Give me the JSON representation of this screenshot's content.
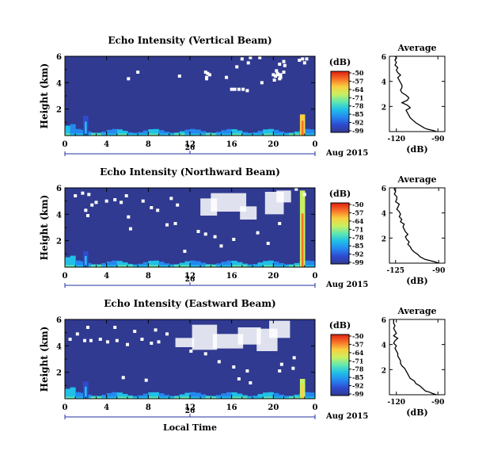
{
  "figure": {
    "date_label": "Aug 2015",
    "x_axis_title": "Local Time",
    "heatmap_ylabel": "Height (km)",
    "avg_title": "Average",
    "avg_xlabel": "(dB)",
    "colorbar_title": "(dB)"
  },
  "colors": {
    "background_fill": "#363a78",
    "missing_fill": "#ffffff",
    "profile_line": "#000000",
    "colormap": [
      "#303a90",
      "#2f4ad0",
      "#2488f0",
      "#20c0e8",
      "#60e8b0",
      "#c8f060",
      "#f8d040",
      "#f87028",
      "#e02010"
    ]
  },
  "chart_data": [
    {
      "type": "heatmap",
      "title": "Echo Intensity (Vertical Beam)",
      "xlabel": "",
      "ylabel": "Height (km)",
      "x_ticks": [
        "0",
        "4",
        "8",
        "12",
        "16",
        "20",
        "0"
      ],
      "x_range_hours": [
        0,
        24
      ],
      "date_tick": "26",
      "y_ticks": [
        "2",
        "4",
        "6"
      ],
      "y_range_km": [
        0,
        6
      ],
      "colorbar": {
        "label": "(dB)",
        "ticks": [
          "-50",
          "-57",
          "-64",
          "-71",
          "-78",
          "-85",
          "-92",
          "-99"
        ],
        "range": [
          -99,
          -50
        ]
      },
      "background_db": -96,
      "surface_layer_db": -85,
      "intense_columns": [
        {
          "hour": 2.0,
          "db": -80,
          "top_km": 1.5
        },
        {
          "hour": 22.8,
          "db": -55,
          "top_km": 1.6
        }
      ],
      "missing_cells_hour_km": [
        [
          6.1,
          4.3
        ],
        [
          11.0,
          4.5
        ],
        [
          13.6,
          4.4
        ],
        [
          13.6,
          4.3
        ],
        [
          13.9,
          4.6
        ],
        [
          13.7,
          4.7
        ],
        [
          13.5,
          4.8
        ],
        [
          7.0,
          4.8
        ],
        [
          15.5,
          4.4
        ],
        [
          16.3,
          3.5
        ],
        [
          17.1,
          3.5
        ],
        [
          17.5,
          3.4
        ],
        [
          16.7,
          3.5
        ],
        [
          16.0,
          3.5
        ],
        [
          18.9,
          4.0
        ],
        [
          20.1,
          4.2
        ],
        [
          20.7,
          4.6
        ],
        [
          21.1,
          5.3
        ],
        [
          20.6,
          5.4
        ],
        [
          20.3,
          4.9
        ],
        [
          20.6,
          4.3
        ],
        [
          21.0,
          4.8
        ],
        [
          20.5,
          4.6
        ],
        [
          20.2,
          4.5
        ],
        [
          20.0,
          4.6
        ],
        [
          20.7,
          4.4
        ],
        [
          20.4,
          4.7
        ],
        [
          21.0,
          5.6
        ],
        [
          22.8,
          5.8
        ],
        [
          23.2,
          5.8
        ],
        [
          22.5,
          5.7
        ],
        [
          23.0,
          5.5
        ],
        [
          17.0,
          5.8
        ],
        [
          17.8,
          5.9
        ],
        [
          18.7,
          5.9
        ],
        [
          17.6,
          5.5
        ],
        [
          16.5,
          5.2
        ]
      ],
      "average_profile": {
        "title": "Average",
        "xlabel": "(dB)",
        "x_ticks": [
          "-120",
          "-90"
        ],
        "x_range": [
          -125,
          -85
        ],
        "y_ticks": [
          "2",
          "4",
          "6"
        ],
        "y_range_km": [
          0,
          6
        ],
        "height_km": [
          0.0,
          0.1,
          0.2,
          0.3,
          0.5,
          0.7,
          0.9,
          1.1,
          1.3,
          1.5,
          1.7,
          1.9,
          2.1,
          2.3,
          2.5,
          2.7,
          2.9,
          3.1,
          3.3,
          3.5,
          3.7,
          3.9,
          4.1,
          4.3,
          4.5,
          4.7,
          4.9,
          5.1,
          5.3,
          5.5,
          5.7,
          5.9,
          6.0
        ],
        "db": [
          -91,
          -94,
          -98,
          -100,
          -103,
          -106,
          -108,
          -110,
          -111,
          -112,
          -113,
          -110,
          -112,
          -116,
          -112,
          -111,
          -113,
          -116,
          -117,
          -116,
          -116,
          -117,
          -118,
          -119,
          -117,
          -119,
          -120,
          -119,
          -121,
          -120,
          -121,
          -120,
          -121
        ]
      }
    },
    {
      "type": "heatmap",
      "title": "Echo Intensity (Northward Beam)",
      "xlabel": "",
      "ylabel": "Height (km)",
      "x_ticks": [
        "0",
        "4",
        "8",
        "12",
        "16",
        "20",
        "0"
      ],
      "x_range_hours": [
        0,
        24
      ],
      "date_tick": "26",
      "y_ticks": [
        "2",
        "4",
        "6"
      ],
      "y_range_km": [
        0,
        6
      ],
      "colorbar": {
        "label": "(dB)",
        "ticks": [
          "-50",
          "-57",
          "-64",
          "-71",
          "-78",
          "-85",
          "-92",
          "-99"
        ],
        "range": [
          -99,
          -50
        ]
      },
      "background_db": -96,
      "surface_layer_db": -84,
      "intense_columns": [
        {
          "hour": 2.0,
          "db": -82,
          "top_km": 1.2
        },
        {
          "hour": 22.8,
          "db": -58,
          "top_km": 5.8
        }
      ],
      "missing_cells_hour_km": [
        [
          1.0,
          5.4
        ],
        [
          1.7,
          5.6
        ],
        [
          2.3,
          5.5
        ],
        [
          2.6,
          4.7
        ],
        [
          2.0,
          4.3
        ],
        [
          2.2,
          3.9
        ],
        [
          3.0,
          4.9
        ],
        [
          4.0,
          5.0
        ],
        [
          4.8,
          5.1
        ],
        [
          5.4,
          4.9
        ],
        [
          5.9,
          5.4
        ],
        [
          6.1,
          3.8
        ],
        [
          7.5,
          5.0
        ],
        [
          8.3,
          4.5
        ],
        [
          8.9,
          4.3
        ],
        [
          10.2,
          5.2
        ],
        [
          10.8,
          4.7
        ],
        [
          9.8,
          3.2
        ],
        [
          10.6,
          3.3
        ],
        [
          6.3,
          2.9
        ],
        [
          12.8,
          2.7
        ],
        [
          13.5,
          2.5
        ],
        [
          14.4,
          2.3
        ],
        [
          16.2,
          2.1
        ],
        [
          18.5,
          2.6
        ],
        [
          19.5,
          1.8
        ],
        [
          20.6,
          3.3
        ],
        [
          22.2,
          5.9
        ],
        [
          23.0,
          5.5
        ],
        [
          11.5,
          1.2
        ],
        [
          15.0,
          1.6
        ]
      ],
      "missing_blocks_hour_km": [
        [
          13.0,
          14.6,
          3.9,
          5.2
        ],
        [
          14.0,
          17.4,
          4.2,
          5.6
        ],
        [
          16.8,
          18.4,
          3.6,
          4.6
        ],
        [
          19.2,
          21.0,
          4.0,
          5.7
        ],
        [
          20.3,
          21.7,
          4.9,
          5.8
        ]
      ],
      "average_profile": {
        "title": "Average",
        "xlabel": "(dB)",
        "x_ticks": [
          "-125",
          "-90"
        ],
        "x_range": [
          -130,
          -85
        ],
        "y_ticks": [
          "2",
          "4",
          "6"
        ],
        "y_range_km": [
          0,
          6
        ],
        "height_km": [
          0.0,
          0.1,
          0.2,
          0.3,
          0.5,
          0.7,
          0.9,
          1.1,
          1.3,
          1.5,
          1.7,
          1.9,
          2.1,
          2.3,
          2.5,
          2.7,
          2.9,
          3.1,
          3.3,
          3.5,
          3.7,
          3.9,
          4.1,
          4.3,
          4.5,
          4.7,
          4.9,
          5.1,
          5.3,
          5.5,
          5.7,
          5.9,
          6.0
        ],
        "db": [
          -90,
          -93,
          -97,
          -101,
          -105,
          -107,
          -110,
          -112,
          -113,
          -115,
          -114,
          -116,
          -117,
          -115,
          -117,
          -118,
          -119,
          -118,
          -121,
          -120,
          -122,
          -121,
          -122,
          -124,
          -123,
          -122,
          -125,
          -124,
          -124,
          -126,
          -125,
          -126,
          -126
        ]
      }
    },
    {
      "type": "heatmap",
      "title": "Echo Intensity (Eastward Beam)",
      "xlabel": "Local Time",
      "ylabel": "Height (km)",
      "x_ticks": [
        "0",
        "4",
        "8",
        "12",
        "16",
        "20",
        "0"
      ],
      "x_range_hours": [
        0,
        24
      ],
      "date_tick": "26",
      "y_ticks": [
        "2",
        "4",
        "6"
      ],
      "y_range_km": [
        0,
        6
      ],
      "colorbar": {
        "label": "(dB)",
        "ticks": [
          "-50",
          "-57",
          "-64",
          "-71",
          "-78",
          "-85",
          "-92",
          "-99"
        ],
        "range": [
          -99,
          -50
        ]
      },
      "background_db": -96,
      "surface_layer_db": -84,
      "intense_columns": [
        {
          "hour": 2.0,
          "db": -82,
          "top_km": 1.3
        },
        {
          "hour": 22.8,
          "db": -60,
          "top_km": 1.5
        }
      ],
      "missing_cells_hour_km": [
        [
          0.5,
          4.5
        ],
        [
          1.2,
          4.9
        ],
        [
          1.9,
          4.4
        ],
        [
          2.5,
          4.4
        ],
        [
          3.4,
          4.5
        ],
        [
          4.1,
          4.3
        ],
        [
          5.0,
          4.4
        ],
        [
          6.0,
          4.1
        ],
        [
          7.4,
          4.5
        ],
        [
          8.3,
          4.2
        ],
        [
          9.0,
          4.3
        ],
        [
          2.2,
          5.4
        ],
        [
          4.8,
          5.4
        ],
        [
          6.7,
          5.1
        ],
        [
          8.7,
          5.2
        ],
        [
          9.8,
          4.9
        ],
        [
          5.6,
          1.6
        ],
        [
          7.8,
          1.4
        ],
        [
          12.1,
          3.6
        ],
        [
          13.5,
          3.4
        ],
        [
          14.8,
          2.8
        ],
        [
          16.2,
          2.4
        ],
        [
          17.5,
          2.1
        ],
        [
          16.7,
          1.5
        ],
        [
          17.8,
          1.2
        ],
        [
          20.8,
          2.6
        ],
        [
          20.6,
          2.1
        ],
        [
          21.9,
          2.3
        ],
        [
          22.0,
          3.1
        ]
      ],
      "missing_blocks_hour_km": [
        [
          10.6,
          12.4,
          3.9,
          4.6
        ],
        [
          12.2,
          14.6,
          3.7,
          5.6
        ],
        [
          14.2,
          17.1,
          3.8,
          4.9
        ],
        [
          16.6,
          18.8,
          4.1,
          5.4
        ],
        [
          18.4,
          20.4,
          3.6,
          5.3
        ],
        [
          19.6,
          21.6,
          4.6,
          5.9
        ]
      ],
      "average_profile": {
        "title": "Average",
        "xlabel": "(dB)",
        "x_ticks": [
          "-120",
          "-90"
        ],
        "x_range": [
          -125,
          -85
        ],
        "y_ticks": [
          "2",
          "4",
          "6"
        ],
        "y_range_km": [
          0,
          6
        ],
        "height_km": [
          0.0,
          0.1,
          0.2,
          0.3,
          0.5,
          0.7,
          0.9,
          1.1,
          1.3,
          1.5,
          1.7,
          1.9,
          2.1,
          2.3,
          2.5,
          2.7,
          2.9,
          3.1,
          3.3,
          3.5,
          3.7,
          3.9,
          4.1,
          4.3,
          4.5,
          4.7,
          4.9,
          5.1,
          5.3,
          5.5,
          5.7,
          5.9,
          6.0
        ],
        "db": [
          -91,
          -94,
          -96,
          -99,
          -101,
          -103,
          -106,
          -107,
          -110,
          -111,
          -112,
          -113,
          -114,
          -116,
          -117,
          -117,
          -118,
          -119,
          -119,
          -120,
          -121,
          -120,
          -122,
          -121,
          -119,
          -122,
          -120,
          -121,
          -122,
          -121,
          -122,
          -122,
          -122
        ]
      }
    }
  ]
}
